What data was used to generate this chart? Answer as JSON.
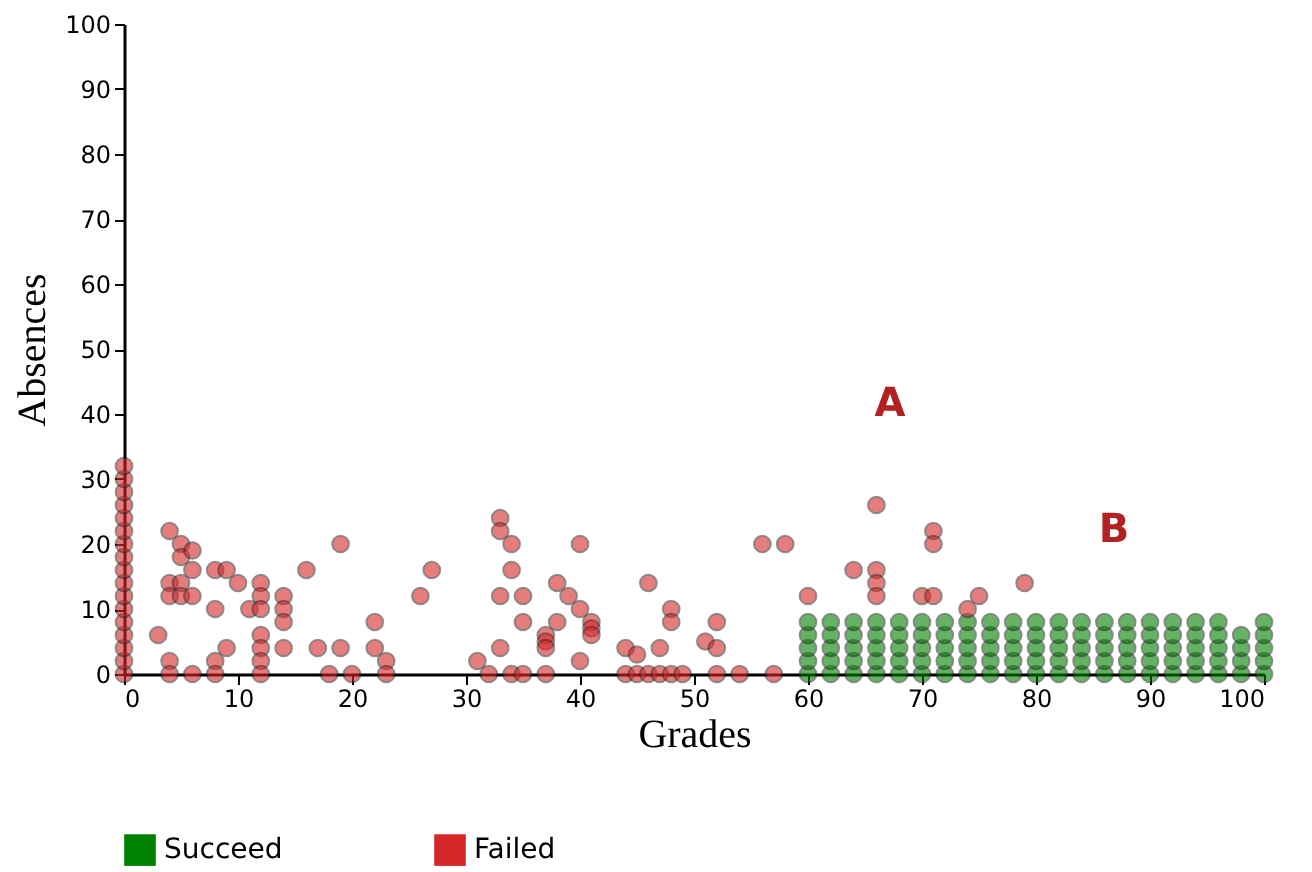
{
  "chart_data": {
    "type": "scatter",
    "xlabel": "Grades",
    "ylabel": "Absences",
    "xlim": [
      0,
      100
    ],
    "ylim": [
      0,
      100
    ],
    "xticks": [
      0,
      10,
      20,
      30,
      40,
      50,
      60,
      70,
      80,
      90,
      100
    ],
    "yticks": [
      0,
      10,
      20,
      30,
      40,
      50,
      60,
      70,
      80,
      90,
      100
    ],
    "grid": false,
    "legend": "bottom left",
    "marker": "circle",
    "annotations": [
      "A",
      "B"
    ],
    "series": [
      {
        "name": "Succeed",
        "color": "#008000",
        "x": [
          60,
          60,
          60,
          60,
          60,
          62,
          62,
          62,
          62,
          62,
          64,
          64,
          64,
          64,
          64,
          66,
          66,
          66,
          66,
          66,
          68,
          68,
          68,
          68,
          68,
          70,
          70,
          70,
          70,
          70,
          72,
          72,
          72,
          72,
          72,
          74,
          74,
          74,
          74,
          74,
          76,
          76,
          76,
          76,
          76,
          78,
          78,
          78,
          78,
          78,
          80,
          80,
          80,
          80,
          80,
          82,
          82,
          82,
          82,
          82,
          84,
          84,
          84,
          84,
          84,
          86,
          86,
          86,
          86,
          86,
          88,
          88,
          88,
          88,
          88,
          90,
          90,
          90,
          90,
          90,
          92,
          92,
          92,
          92,
          92,
          94,
          94,
          94,
          94,
          94,
          96,
          96,
          96,
          96,
          96,
          98,
          98,
          98,
          98,
          100,
          100,
          100,
          100,
          100
        ],
        "values": [
          0,
          2,
          4,
          6,
          8,
          0,
          2,
          4,
          6,
          8,
          0,
          2,
          4,
          6,
          8,
          0,
          2,
          4,
          6,
          8,
          0,
          2,
          4,
          6,
          8,
          0,
          2,
          4,
          6,
          8,
          0,
          2,
          4,
          6,
          8,
          0,
          2,
          4,
          6,
          8,
          0,
          2,
          4,
          6,
          8,
          0,
          2,
          4,
          6,
          8,
          0,
          2,
          4,
          6,
          8,
          0,
          2,
          4,
          6,
          8,
          0,
          2,
          4,
          6,
          8,
          0,
          2,
          4,
          6,
          8,
          0,
          2,
          4,
          6,
          8,
          0,
          2,
          4,
          6,
          8,
          0,
          2,
          4,
          6,
          8,
          0,
          2,
          4,
          6,
          8,
          0,
          2,
          4,
          6,
          8,
          0,
          2,
          4,
          6,
          0,
          2,
          4,
          6,
          8
        ]
      },
      {
        "name": "Failed",
        "color": "#d62728",
        "x": [
          0,
          0,
          0,
          0,
          0,
          0,
          0,
          0,
          0,
          0,
          0,
          0,
          0,
          0,
          0,
          0,
          0,
          3,
          4,
          4,
          4,
          4,
          4,
          5,
          5,
          5,
          5,
          6,
          6,
          6,
          6,
          8,
          8,
          8,
          8,
          9,
          9,
          10,
          11,
          12,
          12,
          12,
          12,
          12,
          12,
          12,
          14,
          14,
          14,
          14,
          16,
          17,
          18,
          19,
          19,
          20,
          22,
          22,
          23,
          23,
          26,
          27,
          31,
          32,
          33,
          33,
          33,
          33,
          34,
          34,
          34,
          35,
          35,
          35,
          37,
          37,
          37,
          37,
          38,
          38,
          39,
          40,
          40,
          40,
          41,
          41,
          41,
          44,
          44,
          45,
          45,
          46,
          46,
          47,
          47,
          48,
          48,
          48,
          49,
          51,
          52,
          52,
          52,
          54,
          56,
          57,
          58,
          60,
          64,
          66,
          66,
          66,
          66,
          70,
          71,
          71,
          71,
          74,
          75,
          79
        ],
        "values": [
          0,
          2,
          4,
          6,
          8,
          10,
          12,
          14,
          16,
          18,
          20,
          22,
          24,
          26,
          28,
          30,
          32,
          6,
          22,
          14,
          12,
          2,
          0,
          20,
          18,
          14,
          12,
          19,
          16,
          12,
          0,
          16,
          10,
          2,
          0,
          16,
          4,
          14,
          10,
          14,
          12,
          10,
          6,
          4,
          2,
          0,
          12,
          10,
          8,
          4,
          16,
          4,
          0,
          20,
          4,
          0,
          8,
          4,
          2,
          0,
          12,
          16,
          2,
          0,
          24,
          22,
          12,
          4,
          20,
          16,
          0,
          12,
          8,
          0,
          6,
          5,
          4,
          0,
          14,
          8,
          12,
          20,
          10,
          2,
          8,
          7,
          6,
          4,
          0,
          3,
          0,
          14,
          0,
          4,
          0,
          10,
          8,
          0,
          0,
          5,
          8,
          4,
          0,
          0,
          20,
          0,
          20,
          12,
          16,
          26,
          16,
          14,
          12,
          12,
          22,
          20,
          12,
          10,
          12,
          14
        ]
      }
    ]
  }
}
